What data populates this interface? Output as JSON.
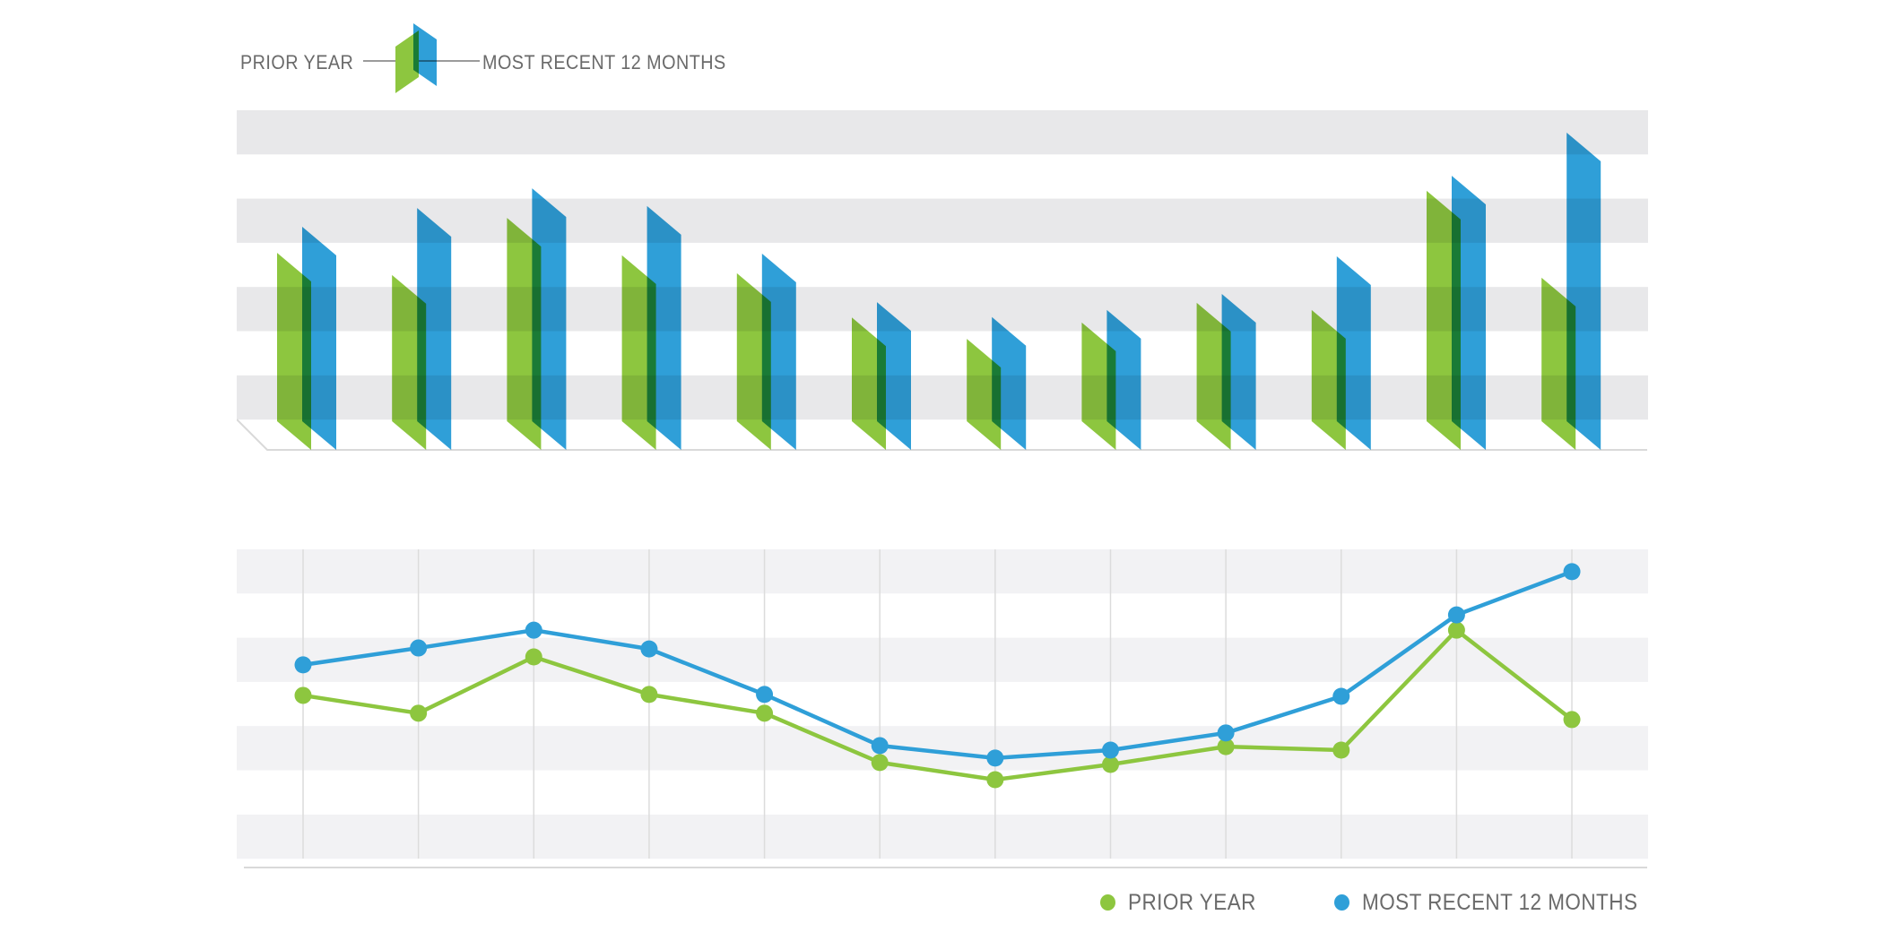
{
  "colors": {
    "green": "#8DC63F",
    "blue": "#2F9FD8",
    "overlap_dark_green": "#1A7D32",
    "bar_stripe_gray": "#E8E8EA",
    "line_stripe_gray": "#F2F2F4",
    "gridline_gray": "#DCDCDC",
    "baseline_gray": "#D9D9D9",
    "legend_text_gray": "#6a6a6a",
    "legend_line_gray": "#9b9b9b",
    "background": "#ffffff"
  },
  "top_legend": {
    "left_label": "PRIOR YEAR",
    "right_label": "MOST RECENT 12 MONTHS",
    "icon": "green-blue-skewed-bars-icon"
  },
  "bottom_legend": {
    "items": [
      {
        "label": "PRIOR YEAR",
        "color": "#8DC63F"
      },
      {
        "label": "MOST RECENT 12 MONTHS",
        "color": "#2F9FD8"
      }
    ]
  },
  "chart_data": [
    {
      "type": "bar",
      "title": "",
      "style": "skewed-parallelogram bar pairs, semi-overlapping",
      "n_categories": 12,
      "x_labels_visible": false,
      "y_labels_visible": false,
      "grid": "horizontal-stripes",
      "ylim": [
        0,
        100
      ],
      "unit": "percent-of-plot-height",
      "series": [
        {
          "name": "PRIOR YEAR",
          "color": "#8DC63F",
          "values": [
            58,
            51.5,
            68.3,
            57.3,
            52,
            39,
            32.7,
            37.5,
            43.3,
            41.2,
            76.3,
            50.7
          ]
        },
        {
          "name": "MOST RECENT 12 MONTHS",
          "color": "#2F9FD8",
          "values": [
            65.7,
            71.2,
            77,
            71.8,
            57.8,
            43.5,
            39.1,
            41.2,
            45.9,
            57,
            80.7,
            93.4
          ]
        }
      ]
    },
    {
      "type": "line",
      "title": "",
      "style": "lines with circular markers on vertical gridlines",
      "n_categories": 12,
      "x_labels_visible": false,
      "y_labels_visible": false,
      "grid": "horizontal-stripes and vertical gridlines",
      "ylim": [
        0,
        100
      ],
      "unit": "percent-of-plot-height",
      "series": [
        {
          "name": "PRIOR YEAR",
          "color": "#8DC63F",
          "values": [
            54.1,
            48.5,
            66.2,
            54.4,
            48.5,
            33,
            27.6,
            32.4,
            38,
            36.9,
            74.6,
            46.5
          ]
        },
        {
          "name": "MOST RECENT 12 MONTHS",
          "color": "#2F9FD8",
          "values": [
            63.7,
            69,
            74.6,
            68.7,
            54.4,
            38.3,
            34.4,
            36.9,
            42.3,
            53.8,
            79.4,
            93
          ]
        }
      ]
    }
  ]
}
